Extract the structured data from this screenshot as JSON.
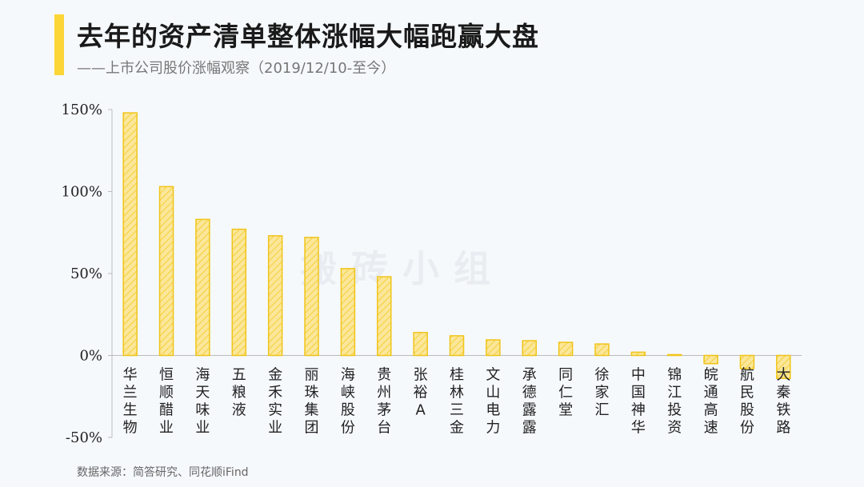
{
  "header": {
    "title": "去年的资产清单整体涨幅大幅跑赢大盘",
    "subtitle": "——上市公司股价涨幅观察（2019/12/10-至今）"
  },
  "watermark": "搬砖小组",
  "source": "数据来源：简答研究、同花顺iFind",
  "colors": {
    "accent": "#fcd537",
    "bar_fill": "#fbe79a",
    "bar_stroke": "#f0c419",
    "hatch": "#f5cf3a"
  },
  "chart_data": {
    "type": "bar",
    "categories": [
      "华兰生物",
      "恒顺醋业",
      "海天味业",
      "五粮液",
      "金禾实业",
      "丽珠集团",
      "海峡股份",
      "贵州茅台",
      "张裕A",
      "桂林三金",
      "文山电力",
      "承德露露",
      "同仁堂",
      "徐家汇",
      "中国神华",
      "锦江投资",
      "皖通高速",
      "航民股份",
      "大秦铁路"
    ],
    "values": [
      148,
      103,
      83,
      77,
      73,
      72,
      53,
      48,
      14,
      12,
      9.5,
      9,
      8,
      7,
      2,
      0.5,
      -5,
      -8,
      -14
    ],
    "yticks": [
      "150%",
      "100%",
      "50%",
      "0%",
      "-50%"
    ],
    "ylim": [
      -50,
      150
    ],
    "value_unit": "%",
    "grid": false,
    "pattern": "diagonal-hatch"
  }
}
